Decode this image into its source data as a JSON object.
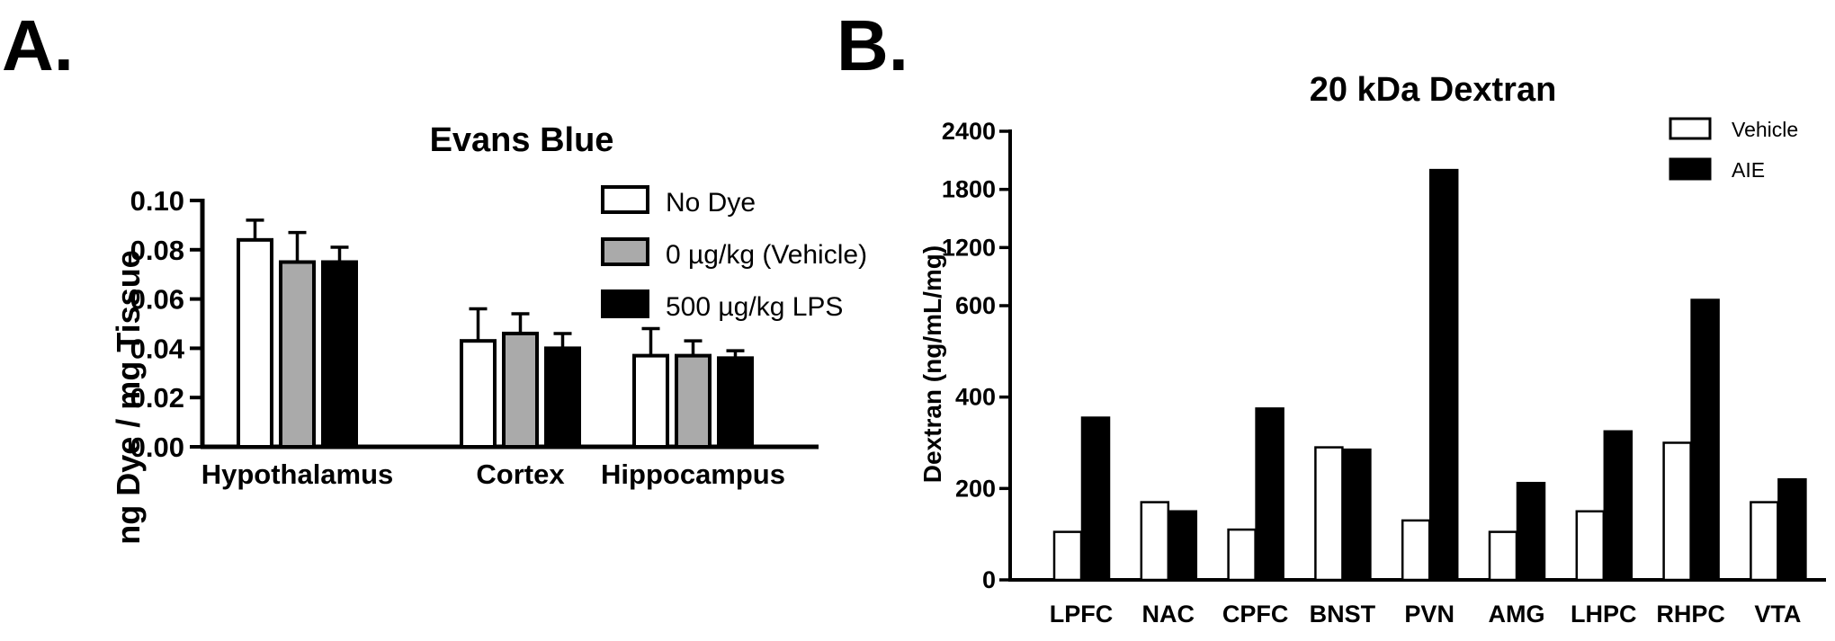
{
  "panels": {
    "a_label": "A.",
    "b_label": "B."
  },
  "chart_data": [
    {
      "type": "bar",
      "title": "Evans Blue",
      "xlabel": "",
      "ylabel": "ng Dye / mg Tissue",
      "ylim": [
        0,
        0.1
      ],
      "yticks": [
        "0.00",
        "0.02",
        "0.04",
        "0.06",
        "0.08",
        "0.10"
      ],
      "categories": [
        "Hypothalamus",
        "Cortex",
        "Hippocampus"
      ],
      "series": [
        {
          "name": "No Dye",
          "color": "#ffffff",
          "values": [
            0.084,
            0.043,
            0.037
          ],
          "errors": [
            0.008,
            0.013,
            0.011
          ]
        },
        {
          "name": "0 µg/kg (Vehicle)",
          "color": "#aaaaaa",
          "values": [
            0.075,
            0.046,
            0.037
          ],
          "errors": [
            0.012,
            0.008,
            0.006
          ]
        },
        {
          "name": "500 µg/kg LPS",
          "color": "#000000",
          "values": [
            0.075,
            0.04,
            0.036
          ],
          "errors": [
            0.006,
            0.006,
            0.003
          ]
        }
      ],
      "legend": "top-right",
      "grid": false
    },
    {
      "type": "bar",
      "title": "20 kDa Dextran",
      "xlabel": "",
      "ylabel": "Dextran (ng/mL/mg)",
      "axis": "broken",
      "ylim": [
        0,
        2400
      ],
      "yticks": [
        "0",
        "200",
        "400",
        "600",
        "1200",
        "1800",
        "2400"
      ],
      "categories": [
        "LPFC",
        "NAC",
        "CPFC",
        "BNST",
        "PVN",
        "AMG",
        "LHPC",
        "RHPC",
        "VTA"
      ],
      "series": [
        {
          "name": "Vehicle",
          "color": "#ffffff",
          "values": [
            105,
            170,
            110,
            290,
            130,
            105,
            150,
            300,
            170
          ]
        },
        {
          "name": "AIE",
          "color": "#000000",
          "values": [
            355,
            150,
            375,
            285,
            2000,
            212,
            325,
            660,
            220
          ]
        }
      ],
      "legend": "top-right",
      "grid": false
    }
  ]
}
